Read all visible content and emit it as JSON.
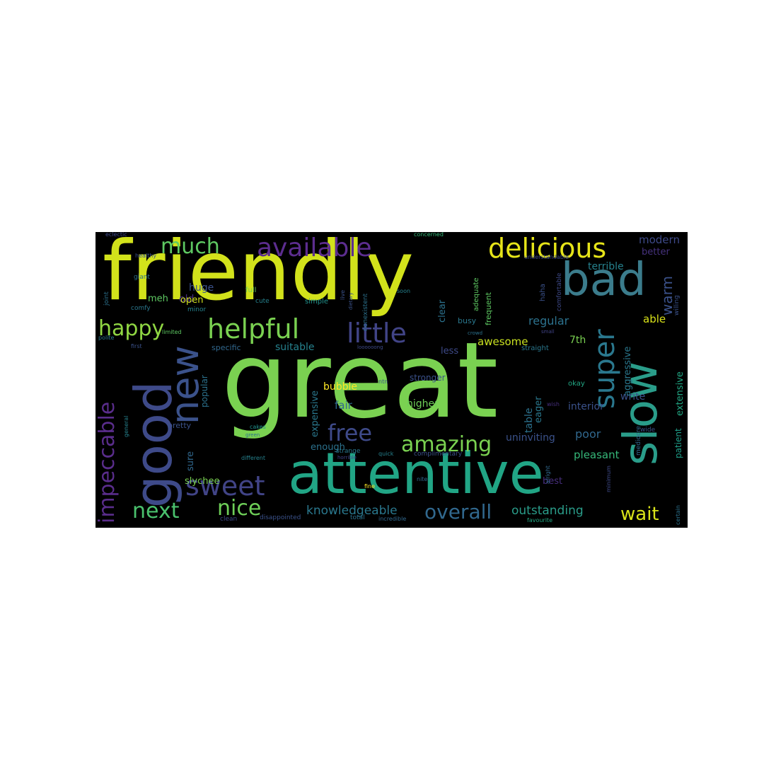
{
  "wordcloud": {
    "background": "#000000",
    "words": [
      {
        "text": "great",
        "color": "#7ad151"
      },
      {
        "text": "friendly",
        "color": "#d2e21b"
      },
      {
        "text": "attentive",
        "color": "#21a585"
      },
      {
        "text": "bad",
        "color": "#3b7c8c"
      },
      {
        "text": "good",
        "color": "#3e4a89"
      },
      {
        "text": "slow",
        "color": "#2a9d8a"
      },
      {
        "text": "new",
        "color": "#3b528b"
      },
      {
        "text": "delicious",
        "color": "#e6e419"
      },
      {
        "text": "helpful",
        "color": "#7ad151"
      },
      {
        "text": "available",
        "color": "#5c2d8f"
      },
      {
        "text": "little",
        "color": "#414487"
      },
      {
        "text": "super",
        "color": "#2a788e"
      },
      {
        "text": "amazing",
        "color": "#7ad151"
      },
      {
        "text": "sweet",
        "color": "#414487"
      },
      {
        "text": "impeccable",
        "color": "#5a2d8c"
      },
      {
        "text": "much",
        "color": "#5ec962"
      },
      {
        "text": "happy",
        "color": "#90d743"
      },
      {
        "text": "free",
        "color": "#3e4a89"
      },
      {
        "text": "nice",
        "color": "#6ece58"
      },
      {
        "text": "next",
        "color": "#4ac16d"
      },
      {
        "text": "overall",
        "color": "#31688e"
      },
      {
        "text": "wait",
        "color": "#d8e219"
      },
      {
        "text": "knowledgeable",
        "color": "#2a788e"
      },
      {
        "text": "outstanding",
        "color": "#2a9d8a"
      },
      {
        "text": "warm",
        "color": "#3b528b"
      },
      {
        "text": "pleasant",
        "color": "#35b779"
      },
      {
        "text": "regular",
        "color": "#2c728e"
      },
      {
        "text": "awesome",
        "color": "#c8e020"
      },
      {
        "text": "terrible",
        "color": "#26828e"
      },
      {
        "text": "modern",
        "color": "#3e4a89"
      },
      {
        "text": "better",
        "color": "#46327e"
      },
      {
        "text": "able",
        "color": "#d8e219"
      },
      {
        "text": "7th",
        "color": "#7ad151"
      },
      {
        "text": "huge",
        "color": "#3b528b"
      },
      {
        "text": "old",
        "color": "#472f7d"
      },
      {
        "text": "open",
        "color": "#d0e11c"
      },
      {
        "text": "meh",
        "color": "#5ec962"
      },
      {
        "text": "suitable",
        "color": "#26828e"
      },
      {
        "text": "less",
        "color": "#3e4a89"
      },
      {
        "text": "clear",
        "color": "#2c728e"
      },
      {
        "text": "busy",
        "color": "#2a788e"
      },
      {
        "text": "fair",
        "color": "#31688e"
      },
      {
        "text": "bubble",
        "color": "#fde725"
      },
      {
        "text": "higher",
        "color": "#6ece58"
      },
      {
        "text": "poor",
        "color": "#31688e"
      },
      {
        "text": "interior",
        "color": "#3b528b"
      },
      {
        "text": "write",
        "color": "#3b528b"
      },
      {
        "text": "table",
        "color": "#2c728e"
      },
      {
        "text": "eager",
        "color": "#2a788e"
      },
      {
        "text": "aggressive",
        "color": "#2a788e"
      },
      {
        "text": "extensive",
        "color": "#22a884"
      },
      {
        "text": "patient",
        "color": "#1f9e89"
      },
      {
        "text": "expensive",
        "color": "#2a788e"
      },
      {
        "text": "enough",
        "color": "#2c728e"
      },
      {
        "text": "uninviting",
        "color": "#3b528b"
      },
      {
        "text": "sure",
        "color": "#31688e"
      },
      {
        "text": "slychee",
        "color": "#7ad151"
      },
      {
        "text": "best",
        "color": "#472f7d"
      },
      {
        "text": "popular",
        "color": "#2c728e"
      },
      {
        "text": "stronger",
        "color": "#3b528b"
      },
      {
        "text": "okay",
        "color": "#22a884"
      },
      {
        "text": "pretty",
        "color": "#3b528b"
      },
      {
        "text": "specific",
        "color": "#31688e"
      },
      {
        "text": "straight",
        "color": "#2a788e"
      },
      {
        "text": "frequent",
        "color": "#5ec962"
      },
      {
        "text": "adequate",
        "color": "#5ec962"
      },
      {
        "text": "comfortable",
        "color": "#3e4a89"
      },
      {
        "text": "haha",
        "color": "#3b528b"
      },
      {
        "text": "willing",
        "color": "#3b528b"
      },
      {
        "text": "nonexistent",
        "color": "#2c728e"
      },
      {
        "text": "simple",
        "color": "#21918c"
      },
      {
        "text": "full",
        "color": "#6ece58"
      },
      {
        "text": "cute",
        "color": "#26828e"
      },
      {
        "text": "giant",
        "color": "#2c728e"
      },
      {
        "text": "comfy",
        "color": "#2a788e"
      },
      {
        "text": "minor",
        "color": "#26828e"
      },
      {
        "text": "joint",
        "color": "#2c728e"
      },
      {
        "text": "healthy",
        "color": "#3b528b"
      },
      {
        "text": "eclectic",
        "color": "#3e4a89"
      },
      {
        "text": "concerned",
        "color": "#35b779"
      },
      {
        "text": "understandable",
        "color": "#3e4a89"
      },
      {
        "text": "first",
        "color": "#3b528b"
      },
      {
        "text": "limited",
        "color": "#5ec962"
      },
      {
        "text": "polite",
        "color": "#2a788e"
      },
      {
        "text": "general",
        "color": "#26828e"
      },
      {
        "text": "green",
        "color": "#2c728e"
      },
      {
        "text": "different",
        "color": "#26828e"
      },
      {
        "text": "strange",
        "color": "#2a788e"
      },
      {
        "text": "horrible",
        "color": "#414487"
      },
      {
        "text": "cakes",
        "color": "#21918c"
      },
      {
        "text": "complimentary",
        "color": "#3b528b"
      },
      {
        "text": "quick",
        "color": "#26828e"
      },
      {
        "text": "total",
        "color": "#2c728e"
      },
      {
        "text": "incredible",
        "color": "#31688e"
      },
      {
        "text": "clean",
        "color": "#3e4a89"
      },
      {
        "text": "disappointed",
        "color": "#3b528b"
      },
      {
        "text": "favourite",
        "color": "#22a884"
      },
      {
        "text": "certain",
        "color": "#2c728e"
      },
      {
        "text": "mediocre",
        "color": "#31688e"
      },
      {
        "text": "wide",
        "color": "#3b528b"
      },
      {
        "text": "alright",
        "color": "#31688e"
      },
      {
        "text": "minimum",
        "color": "#3e4a89"
      },
      {
        "text": "fine",
        "color": "#fde725"
      },
      {
        "text": "nite",
        "color": "#31688e"
      },
      {
        "text": "wish",
        "color": "#472f7d"
      },
      {
        "text": "ntn",
        "color": "#3b528b"
      },
      {
        "text": "loooooong",
        "color": "#3e4a89"
      },
      {
        "text": "soon",
        "color": "#26828e"
      },
      {
        "text": "live",
        "color": "#3b528b"
      },
      {
        "text": "dietary",
        "color": "#3b528b"
      },
      {
        "text": "crowd",
        "color": "#2c728e"
      },
      {
        "text": "small",
        "color": "#414487"
      }
    ]
  }
}
